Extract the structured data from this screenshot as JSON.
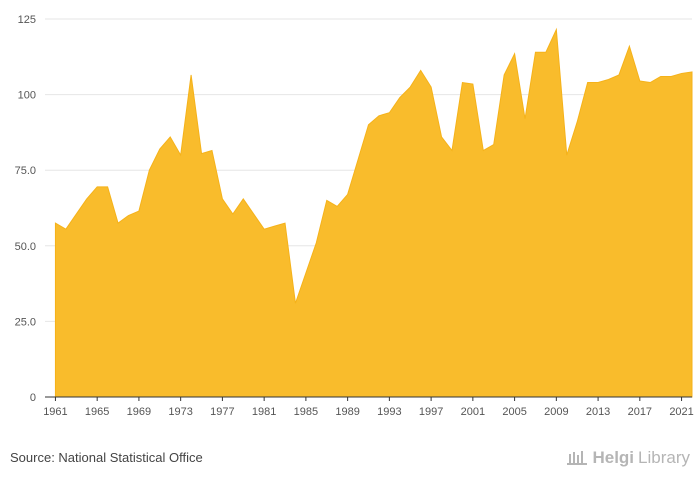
{
  "chart_data": {
    "type": "area",
    "title": "",
    "xlabel": "",
    "ylabel": "",
    "ylim": [
      0,
      125
    ],
    "xlim": [
      1960,
      2022
    ],
    "grid": true,
    "legend": "none",
    "yticks": [
      0,
      25.0,
      50.0,
      75.0,
      100,
      125
    ],
    "ytick_labels": [
      "0",
      "25.0",
      "50.0",
      "75.0",
      "100",
      "125"
    ],
    "xticks": [
      1961,
      1965,
      1969,
      1973,
      1977,
      1981,
      1985,
      1989,
      1993,
      1997,
      2001,
      2005,
      2009,
      2013,
      2017,
      2021
    ],
    "xtick_labels": [
      "1961",
      "1965",
      "1969",
      "1973",
      "1977",
      "1981",
      "1985",
      "1989",
      "1993",
      "1997",
      "2001",
      "2005",
      "2009",
      "2013",
      "2017",
      "2021"
    ],
    "x": [
      1961,
      1962,
      1963,
      1964,
      1965,
      1966,
      1967,
      1968,
      1969,
      1970,
      1971,
      1972,
      1973,
      1974,
      1975,
      1976,
      1977,
      1978,
      1979,
      1980,
      1981,
      1982,
      1983,
      1984,
      1985,
      1986,
      1987,
      1988,
      1989,
      1990,
      1991,
      1992,
      1993,
      1994,
      1995,
      1996,
      1997,
      1998,
      1999,
      2000,
      2001,
      2002,
      2003,
      2004,
      2005,
      2006,
      2007,
      2008,
      2009,
      2010,
      2011,
      2012,
      2013,
      2014,
      2015,
      2016,
      2017,
      2018,
      2019,
      2020,
      2021,
      2022
    ],
    "values": [
      57.5,
      55.5,
      60.5,
      65.5,
      69.5,
      69.5,
      57.5,
      60,
      61.5,
      75,
      82,
      86,
      80,
      106.5,
      80.5,
      81.5,
      65.5,
      60.5,
      65.5,
      60.5,
      55.5,
      56.5,
      57.5,
      31,
      41,
      51,
      65,
      63,
      67,
      78.5,
      90,
      93,
      94,
      99,
      102.5,
      108,
      102.5,
      86,
      81.5,
      104,
      103.5,
      81.5,
      83.5,
      106.5,
      113.5,
      92,
      114,
      114,
      121.5,
      80,
      91,
      104,
      104,
      105,
      106.5,
      116,
      104.5,
      104,
      106,
      106,
      107,
      107.5
    ],
    "colors": {
      "area": "#F9BC2C",
      "grid": "#e6e6e6",
      "axis": "#333333"
    }
  },
  "footer": {
    "source": "Source: National Statistical Office",
    "brand_part1": "Helgi",
    "brand_part2": "Library"
  }
}
